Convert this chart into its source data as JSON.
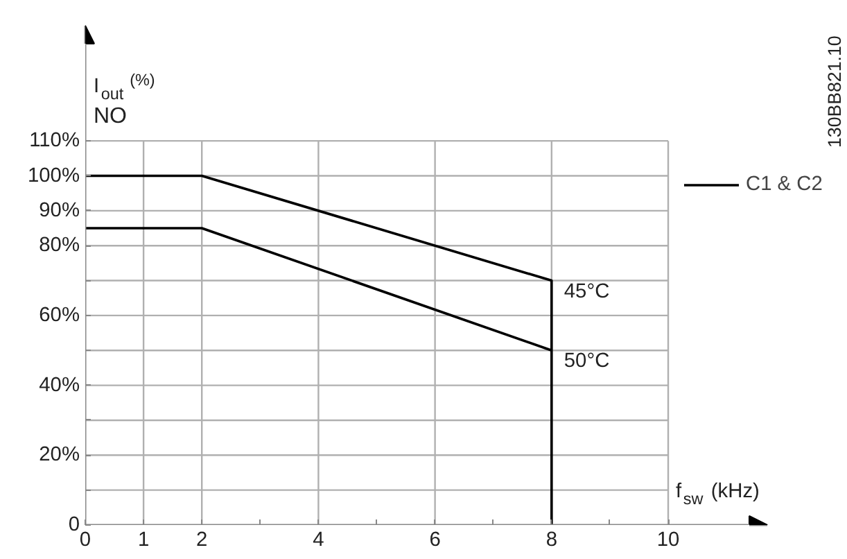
{
  "chart_data": {
    "type": "line",
    "xlabel": "f$_{sw}$ (kHz)",
    "ylabel": "I$_{out}$$^{(%)}$",
    "subtitle": "NO",
    "legend_title": "C1 & C2",
    "legend": "right",
    "grid": true,
    "line_style": "solid",
    "marker": "none",
    "series": [
      {
        "name": "45°C",
        "color": "#000000",
        "x": [
          0,
          2,
          8,
          8
        ],
        "values": [
          100,
          100,
          70,
          0
        ]
      },
      {
        "name": "50°C",
        "color": "#000000",
        "x": [
          0,
          2,
          8
        ],
        "values": [
          85,
          85,
          50
        ]
      }
    ],
    "xlim": [
      0,
      11.7
    ],
    "ylim": [
      0,
      143
    ],
    "xticks": [
      0,
      1,
      2,
      {
        "value": 3,
        "label": null
      },
      4,
      {
        "value": 5,
        "label": null
      },
      6,
      {
        "value": 7,
        "label": null
      },
      8,
      {
        "value": 9,
        "label": null
      },
      10
    ],
    "yticks": [
      {
        "value": 0,
        "label": "0"
      },
      {
        "value": 10,
        "label": null
      },
      {
        "value": 20,
        "label": "20%"
      },
      {
        "value": 30,
        "label": null
      },
      {
        "value": 40,
        "label": "40%"
      },
      {
        "value": 50,
        "label": null
      },
      {
        "value": 60,
        "label": "60%"
      },
      {
        "value": 70,
        "label": null
      },
      {
        "value": 80,
        "label": "80%"
      },
      {
        "value": 90,
        "label": "90%"
      },
      {
        "value": 100,
        "label": "100%"
      },
      {
        "value": 110,
        "label": "110%"
      }
    ],
    "annotations": [
      "130BB821.10"
    ]
  }
}
